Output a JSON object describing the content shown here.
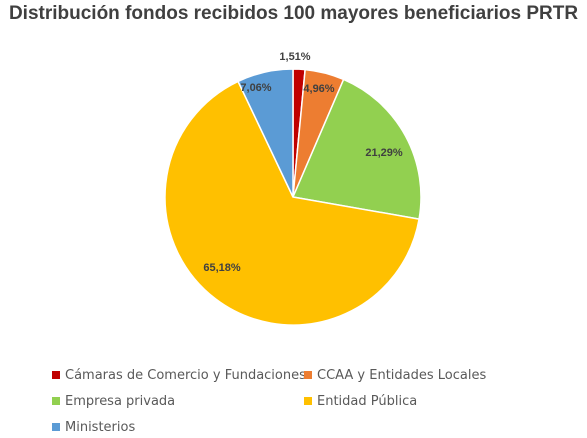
{
  "chart_data": {
    "type": "pie",
    "title": "Distribución fondos recibidos 100 mayores beneficiarios PRTR",
    "slices": [
      {
        "label": "Cámaras de Comercio y Fundaciones",
        "value": 1.51,
        "value_label": "1,51%",
        "color": "#C00000"
      },
      {
        "label": "CCAA y Entidades Locales",
        "value": 4.96,
        "value_label": "4,96%",
        "color": "#ED7D31"
      },
      {
        "label": "Empresa privada",
        "value": 21.29,
        "value_label": "21,29%",
        "color": "#92D050"
      },
      {
        "label": "Entidad Pública",
        "value": 65.18,
        "value_label": "65,18%",
        "color": "#FFC000"
      },
      {
        "label": "Ministerios",
        "value": 7.06,
        "value_label": "7,06%",
        "color": "#5B9BD5"
      }
    ],
    "legend_position": "bottom",
    "start_angle": "top",
    "direction": "clockwise"
  }
}
